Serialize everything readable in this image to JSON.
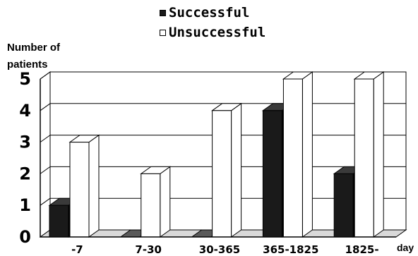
{
  "chart_data": {
    "type": "bar",
    "categories": [
      "-7",
      "7-30",
      "30-365",
      "365-1825",
      "1825-"
    ],
    "series": [
      {
        "name": "Successful",
        "values": [
          1,
          0,
          0,
          4,
          2
        ],
        "color": "#1a1a1a"
      },
      {
        "name": "Unsuccessful",
        "values": [
          3,
          2,
          4,
          5,
          5
        ],
        "color": "#ffffff"
      }
    ],
    "ylabel_line1": "Number of",
    "ylabel_line2": "patients",
    "xlabel": "day",
    "yticks": [
      "0",
      "1",
      "2",
      "3",
      "4",
      "5"
    ],
    "ylim": [
      0,
      5
    ],
    "grid": true,
    "legend_position": "top-center",
    "style": "3d"
  }
}
